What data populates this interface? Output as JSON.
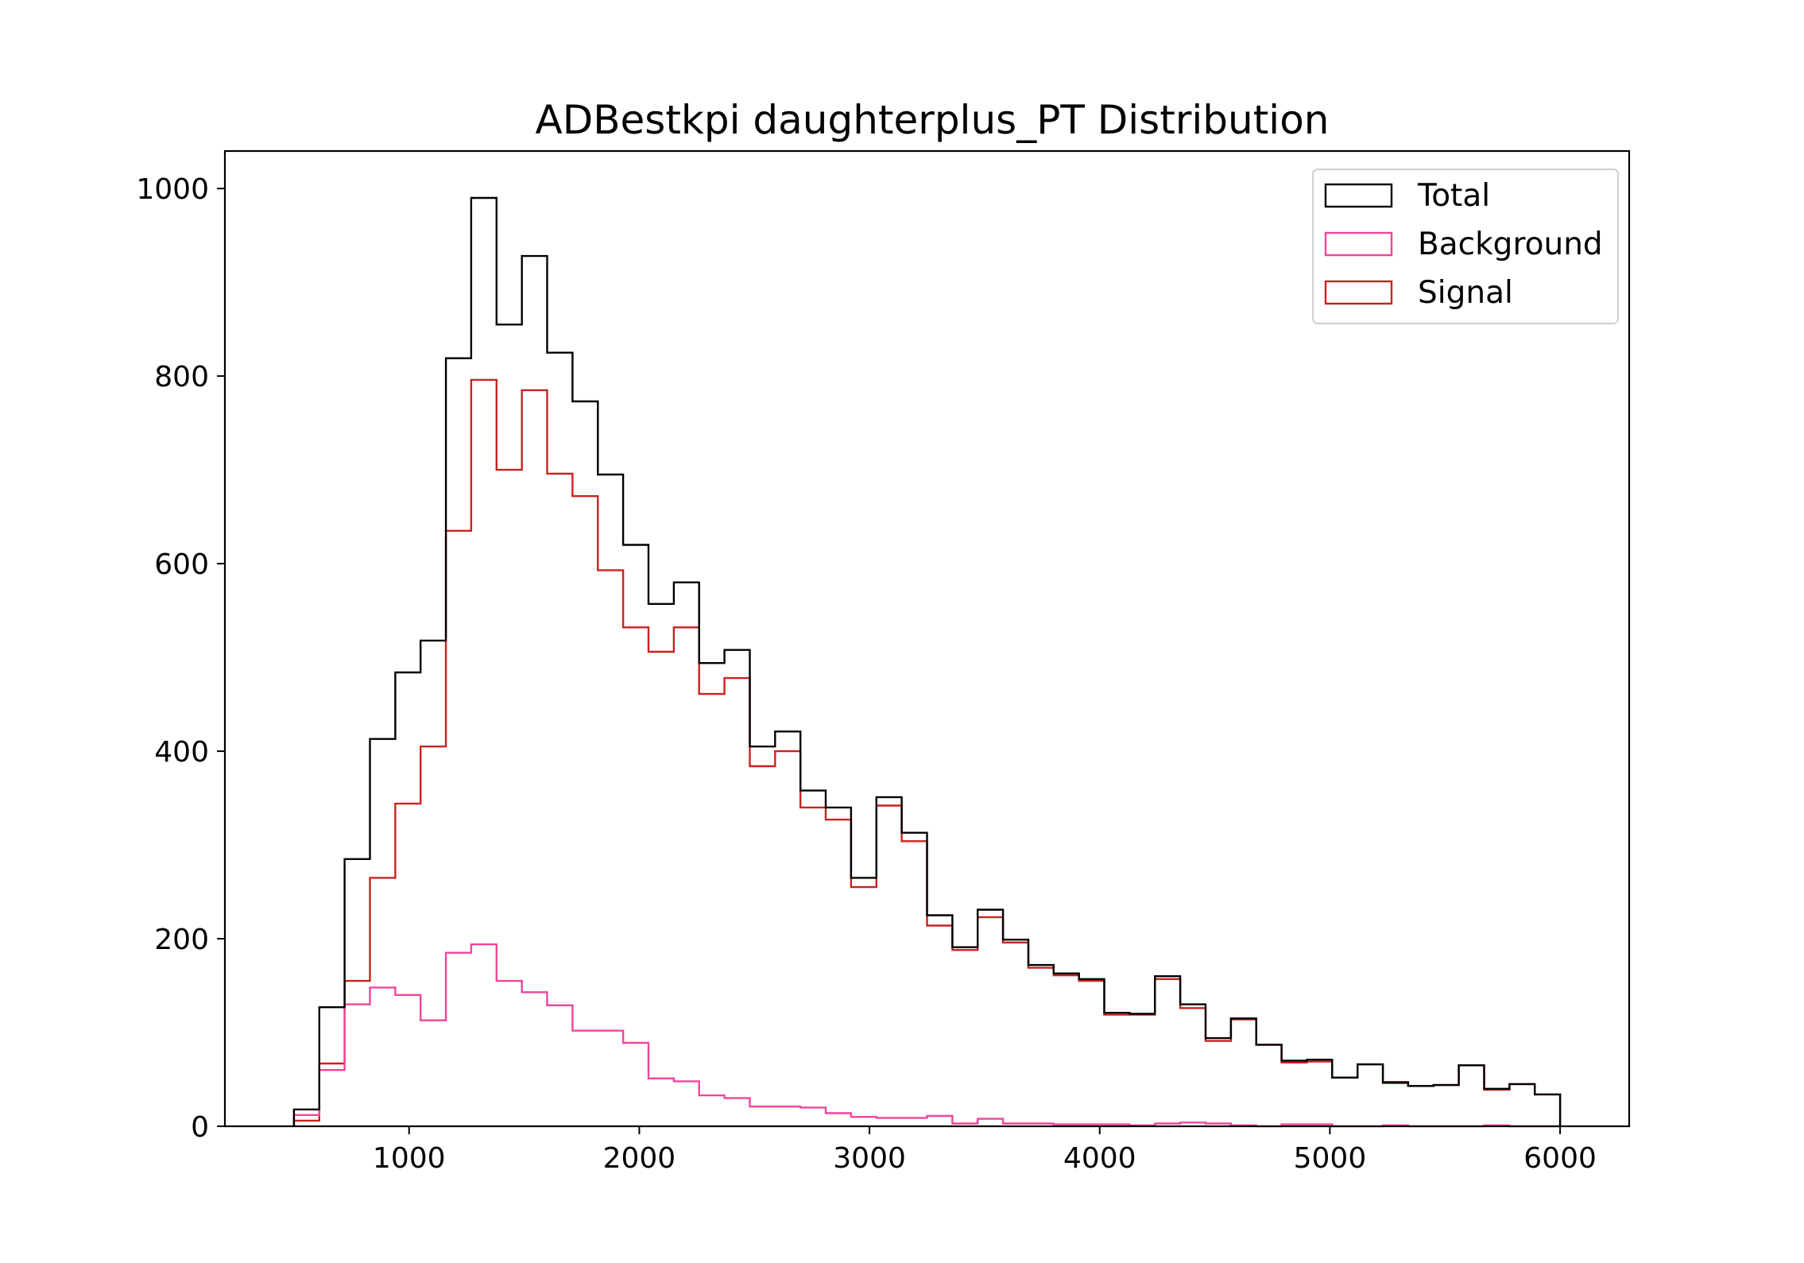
{
  "chart_data": {
    "type": "step-histogram",
    "title": "ADBestkpi daughterplus_PT Distribution",
    "xlabel": "",
    "ylabel": "",
    "xlim": [
      200,
      6300
    ],
    "ylim": [
      0,
      1040
    ],
    "xticks": [
      1000,
      2000,
      3000,
      4000,
      5000,
      6000
    ],
    "xtick_labels": [
      "1000",
      "2000",
      "3000",
      "4000",
      "5000",
      "6000"
    ],
    "yticks": [
      0,
      200,
      400,
      600,
      800,
      1000
    ],
    "ytick_labels": [
      "0",
      "200",
      "400",
      "600",
      "800",
      "1000"
    ],
    "grid": false,
    "legend_position": "upper right",
    "bin_edges": [
      500,
      610,
      720,
      830,
      940,
      1050,
      1160,
      1270,
      1380,
      1490,
      1600,
      1710,
      1820,
      1930,
      2040,
      2150,
      2260,
      2370,
      2480,
      2590,
      2700,
      2810,
      2920,
      3030,
      3140,
      3250,
      3360,
      3470,
      3580,
      3690,
      3800,
      3910,
      4020,
      4130,
      4240,
      4350,
      4460,
      4570,
      4680,
      4790,
      4900,
      5010,
      5120,
      5230,
      5340,
      5450,
      5560,
      5670,
      5780,
      5890,
      6000
    ],
    "series": [
      {
        "name": "Total",
        "color": "#000000",
        "values": [
          18,
          127,
          285,
          413,
          484,
          518,
          819,
          990,
          855,
          928,
          825,
          773,
          695,
          620,
          557,
          580,
          494,
          508,
          405,
          421,
          358,
          340,
          265,
          351,
          313,
          225,
          191,
          231,
          199,
          172,
          163,
          157,
          121,
          120,
          160,
          130,
          94,
          115,
          87,
          70,
          71,
          52,
          66,
          47,
          43,
          44,
          65,
          40,
          45,
          34
        ]
      },
      {
        "name": "Background",
        "color": "#f0459b",
        "values": [
          12,
          60,
          130,
          148,
          140,
          113,
          185,
          194,
          155,
          143,
          129,
          102,
          102,
          89,
          51,
          48,
          33,
          30,
          21,
          21,
          20,
          14,
          10,
          9,
          9,
          11,
          3,
          8,
          3,
          3,
          2,
          2,
          2,
          1,
          3,
          4,
          3,
          1,
          0,
          2,
          2,
          0,
          0,
          1,
          0,
          0,
          0,
          1,
          0,
          0
        ]
      },
      {
        "name": "Signal",
        "color": "#c8231e",
        "values": [
          6,
          67,
          155,
          265,
          344,
          405,
          635,
          796,
          700,
          785,
          696,
          672,
          593,
          532,
          506,
          532,
          461,
          478,
          384,
          400,
          340,
          327,
          255,
          342,
          304,
          214,
          188,
          223,
          196,
          169,
          161,
          155,
          119,
          119,
          157,
          126,
          91,
          114,
          87,
          68,
          69,
          52,
          66,
          46,
          43,
          44,
          65,
          39,
          45,
          34
        ]
      }
    ]
  }
}
